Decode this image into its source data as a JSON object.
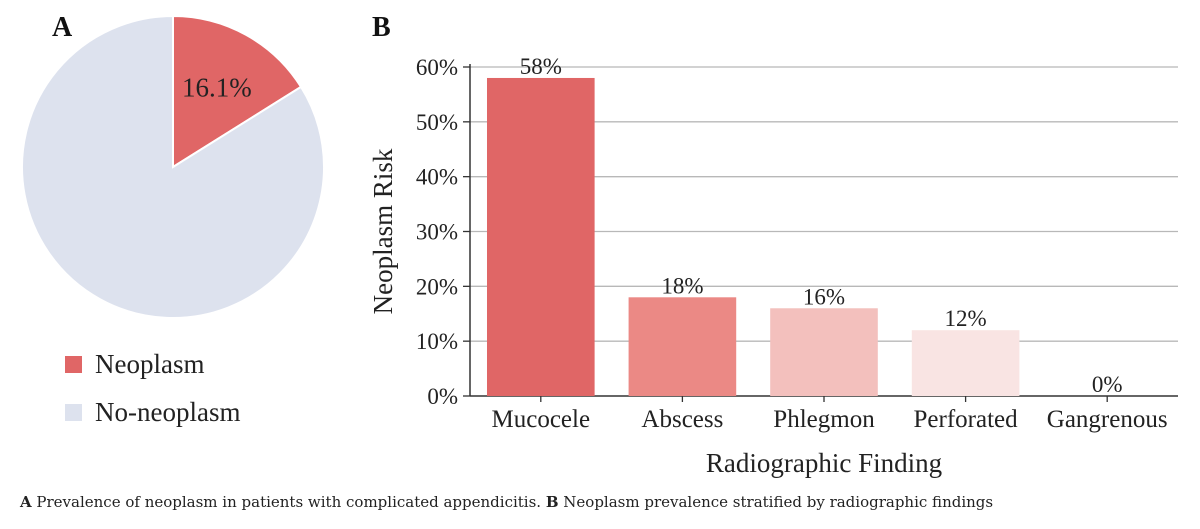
{
  "panels": {
    "a_letter": "A",
    "b_letter": "B"
  },
  "caption": {
    "a_letter": "A",
    "a_text": " Prevalence of neoplasm in patients with complicated appendicitis. ",
    "b_letter": "B",
    "b_text": " Neoplasm prevalence stratified by radiographic findings"
  },
  "colors": {
    "neoplasm": "#e06666",
    "no_neoplasm": "#dde2ee",
    "bars": [
      "#e06666",
      "#eb8985",
      "#f3c0bd",
      "#f9e4e3",
      "#fdf1f1"
    ],
    "grid": "#b8b8b8",
    "axis": "#333333"
  },
  "chart_data": [
    {
      "type": "pie",
      "panel": "A",
      "slices": [
        {
          "label": "Neoplasm",
          "value": 16.1,
          "data_label": "16.1%"
        },
        {
          "label": "No-neoplasm",
          "value": 83.9
        }
      ],
      "legend": [
        "Neoplasm",
        "No-neoplasm"
      ],
      "legend_position": "bottom"
    },
    {
      "type": "bar",
      "panel": "B",
      "categories": [
        "Mucocele",
        "Abscess",
        "Phlegmon",
        "Perforated",
        "Gangrenous"
      ],
      "values": [
        58,
        18,
        16,
        12,
        0
      ],
      "data_labels": [
        "58%",
        "18%",
        "16%",
        "12%",
        "0%"
      ],
      "xlabel": "Radiographic Finding",
      "ylabel": "Neoplasm Risk",
      "ylim": [
        0,
        60
      ],
      "yticks": [
        "0%",
        "10%",
        "20%",
        "30%",
        "40%",
        "50%",
        "60%"
      ],
      "grid": true
    }
  ]
}
